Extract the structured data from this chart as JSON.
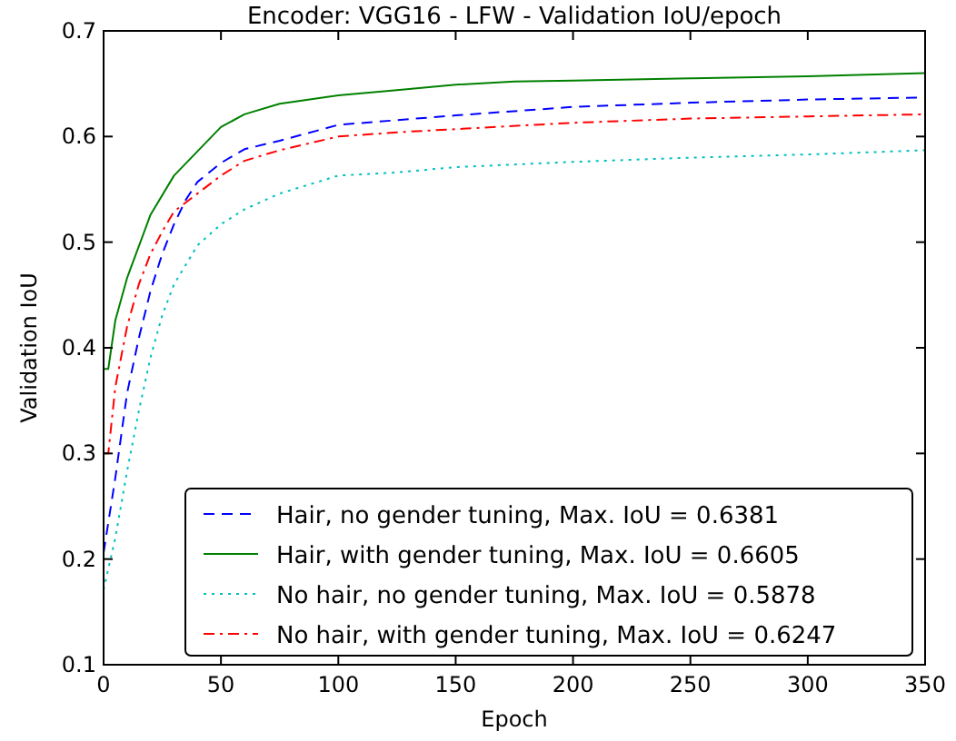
{
  "chart_data": {
    "type": "line",
    "title": "Encoder: VGG16 - LFW - Validation IoU/epoch",
    "xlabel": "Epoch",
    "ylabel": "Validation IoU",
    "xlim": [
      0,
      350
    ],
    "ylim": [
      0.1,
      0.7
    ],
    "xticks": [
      0,
      50,
      100,
      150,
      200,
      250,
      300,
      350
    ],
    "yticks": [
      0.1,
      0.2,
      0.3,
      0.4,
      0.5,
      0.6,
      0.7
    ],
    "grid": false,
    "legend": "bottom right",
    "series": [
      {
        "name": "Hair, no gender tuning, Max. IoU = 0.6381",
        "color": "#0000ff",
        "line_style": "dashed",
        "x": [
          0,
          5,
          10,
          15,
          20,
          25,
          30,
          35,
          40,
          50,
          60,
          75,
          100,
          150,
          200,
          250,
          300,
          350
        ],
        "values": [
          0.206,
          0.277,
          0.357,
          0.409,
          0.454,
          0.489,
          0.517,
          0.54,
          0.557,
          0.575,
          0.588,
          0.596,
          0.611,
          0.62,
          0.628,
          0.632,
          0.635,
          0.637
        ]
      },
      {
        "name": "Hair, with gender tuning, Max. IoU = 0.6605",
        "color": "#008000",
        "line_style": "solid",
        "x": [
          0,
          2,
          5,
          10,
          20,
          30,
          40,
          50,
          60,
          75,
          100,
          125,
          150,
          175,
          200,
          250,
          300,
          350
        ],
        "values": [
          0.38,
          0.38,
          0.426,
          0.466,
          0.526,
          0.563,
          0.586,
          0.609,
          0.621,
          0.631,
          0.639,
          0.644,
          0.649,
          0.652,
          0.653,
          0.655,
          0.657,
          0.66
        ]
      },
      {
        "name": "No hair, no gender tuning, Max. IoU = 0.5878",
        "color": "#00bfbf",
        "line_style": "dotted",
        "x": [
          0,
          5,
          10,
          15,
          20,
          25,
          30,
          40,
          50,
          60,
          75,
          100,
          125,
          150,
          200,
          250,
          300,
          350
        ],
        "values": [
          0.171,
          0.22,
          0.283,
          0.34,
          0.391,
          0.431,
          0.46,
          0.497,
          0.517,
          0.531,
          0.546,
          0.563,
          0.566,
          0.571,
          0.576,
          0.58,
          0.583,
          0.587
        ]
      },
      {
        "name": "No hair, with gender tuning, Max. IoU = 0.6247",
        "color": "#ff0000",
        "line_style": "dashdot",
        "x": [
          0,
          2,
          5,
          10,
          15,
          20,
          25,
          30,
          40,
          50,
          60,
          75,
          100,
          125,
          150,
          200,
          250,
          300,
          350
        ],
        "values": [
          0.3,
          0.3,
          0.363,
          0.42,
          0.46,
          0.489,
          0.51,
          0.529,
          0.546,
          0.563,
          0.577,
          0.587,
          0.6,
          0.604,
          0.607,
          0.613,
          0.617,
          0.619,
          0.621
        ]
      }
    ]
  }
}
